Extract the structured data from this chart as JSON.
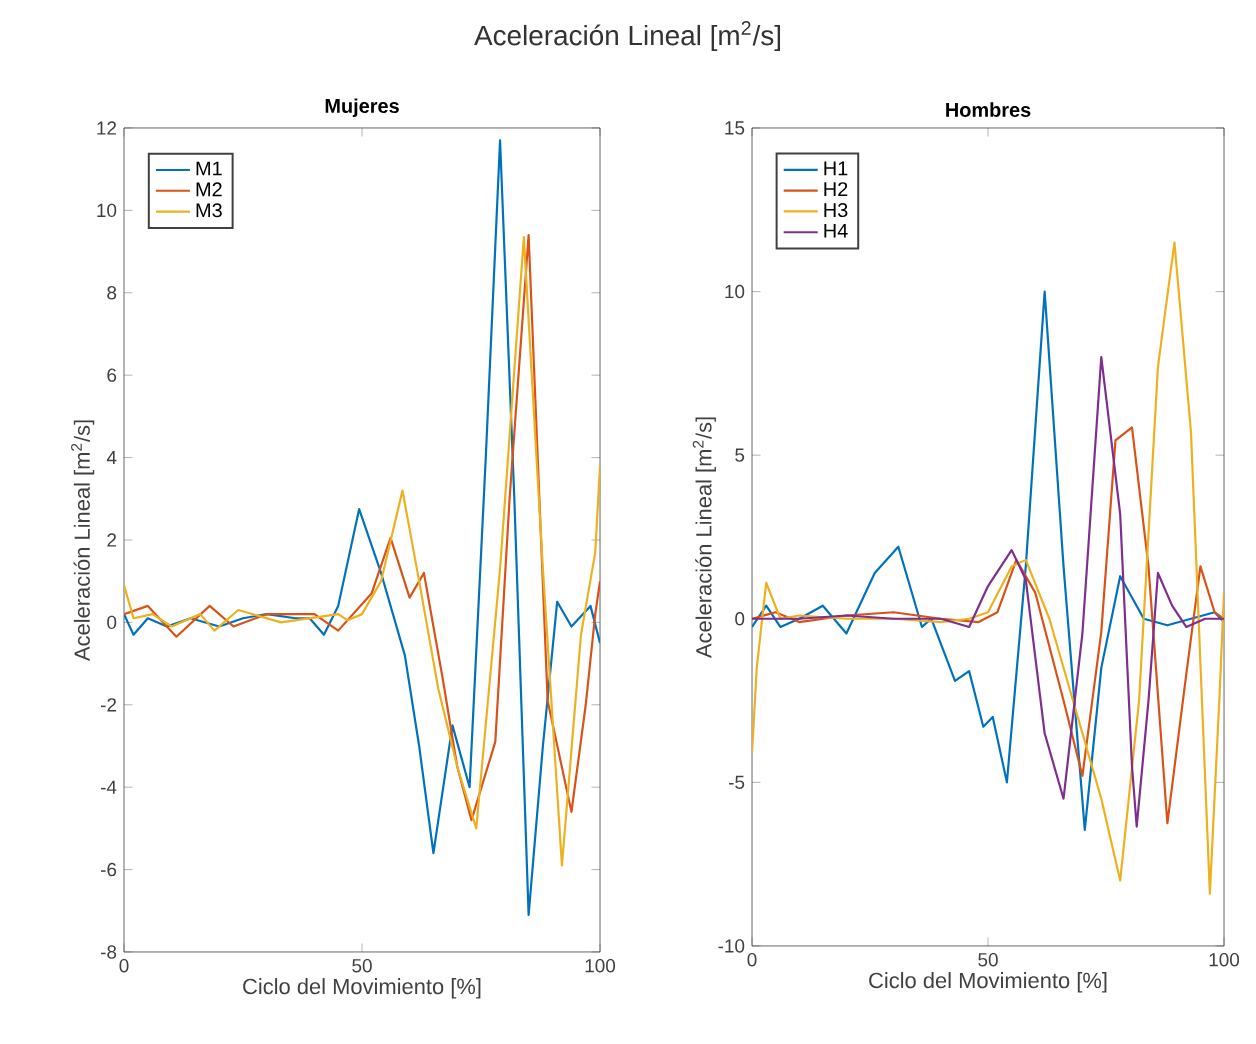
{
  "chart_data": [
    {
      "type": "line",
      "title": "Mujeres",
      "xlabel": "Ciclo del Movimiento [%]",
      "ylabel": "Aceleración Lineal [m$^{2}$/s]",
      "annotations": [
        "Aceleración Lineal [m$^{2}$/s]"
      ],
      "xlim": [
        0,
        100
      ],
      "xticks": [
        0,
        50,
        100
      ],
      "ylim": [
        -8,
        12
      ],
      "yticks": [
        -8,
        -6,
        -4,
        -2,
        0,
        2,
        4,
        6,
        8,
        10,
        12
      ],
      "grid": false,
      "legend": "top left",
      "line_style": "solid",
      "marker": "none",
      "series": [
        {
          "name": "M1",
          "color": "#0072bd",
          "x": [
            0,
            2,
            5,
            9,
            14,
            20,
            25,
            30,
            36,
            39,
            42,
            45,
            49.4,
            54,
            59,
            62,
            65,
            69,
            72.6,
            76,
            79,
            82,
            85,
            88,
            91,
            94,
            98,
            100
          ],
          "values": [
            0.2,
            -0.3,
            0.1,
            -0.1,
            0.1,
            -0.1,
            0.1,
            0.2,
            0.1,
            0.1,
            -0.3,
            0.4,
            2.75,
            1.2,
            -0.8,
            -3.0,
            -5.6,
            -2.5,
            -4.0,
            4.0,
            11.7,
            3.0,
            -7.1,
            -3.0,
            0.5,
            -0.1,
            0.4,
            -0.5
          ]
        },
        {
          "name": "M2",
          "color": "#d95319",
          "x": [
            0,
            5,
            11,
            18,
            23,
            30,
            40,
            45,
            52,
            56,
            60,
            63,
            67,
            70,
            73,
            78,
            81,
            85,
            89,
            94,
            97,
            99,
            100
          ],
          "values": [
            0.2,
            0.4,
            -0.35,
            0.4,
            -0.1,
            0.2,
            0.2,
            -0.2,
            0.7,
            2.05,
            0.6,
            1.2,
            -1.4,
            -3.5,
            -4.8,
            -2.9,
            3.0,
            9.4,
            -1.9,
            -4.6,
            -2.0,
            0.2,
            1.0
          ]
        },
        {
          "name": "M3",
          "color": "#edb120",
          "x": [
            0,
            2,
            6,
            10,
            16,
            19,
            24,
            33,
            45,
            47,
            50,
            54,
            58.5,
            62,
            66,
            70,
            74,
            79,
            84,
            88,
            92,
            96,
            99,
            100
          ],
          "values": [
            0.9,
            0.1,
            0.2,
            -0.1,
            0.2,
            -0.2,
            0.3,
            0,
            0.2,
            0.05,
            0.2,
            1.0,
            3.2,
            1.0,
            -1.6,
            -3.5,
            -5.0,
            1.3,
            9.35,
            1.3,
            -5.9,
            -0.3,
            1.7,
            3.8
          ]
        }
      ]
    },
    {
      "type": "line",
      "title": "Hombres",
      "xlabel": "Ciclo del Movimiento [%]",
      "ylabel": "Aceleración Lineal [m$^{2}$/s]",
      "xlim": [
        0,
        100
      ],
      "xticks": [
        0,
        50,
        100
      ],
      "ylim": [
        -10,
        15
      ],
      "yticks": [
        -10,
        -5,
        0,
        5,
        10,
        15
      ],
      "grid": false,
      "legend": "top left",
      "line_style": "solid",
      "marker": "none",
      "series": [
        {
          "name": "H1",
          "color": "#0072bd",
          "x": [
            0,
            3,
            6,
            10,
            15,
            20,
            26,
            31,
            36,
            38,
            43,
            46,
            49,
            51,
            54,
            58,
            62,
            66,
            70.5,
            74,
            78,
            83,
            88,
            93,
            98,
            100
          ],
          "values": [
            -0.25,
            0.4,
            -0.25,
            0,
            0.4,
            -0.45,
            1.4,
            2.2,
            -0.25,
            0,
            -1.9,
            -1.6,
            -3.3,
            -3.0,
            -5.0,
            1.6,
            10.0,
            1.6,
            -6.45,
            -1.5,
            1.3,
            0,
            -0.2,
            0,
            0.2,
            -0.1
          ]
        },
        {
          "name": "H2",
          "color": "#d95319",
          "x": [
            0,
            5,
            10,
            20,
            30,
            40,
            48,
            52,
            56,
            60,
            66,
            70,
            74,
            77,
            80.5,
            84,
            88,
            92,
            95,
            98,
            100
          ],
          "values": [
            0,
            0.2,
            -0.1,
            0.1,
            0.2,
            0,
            -0.1,
            0.2,
            1.8,
            0.8,
            -2.5,
            -4.8,
            -0.4,
            5.45,
            5.85,
            1.6,
            -6.25,
            -1.7,
            1.6,
            0.2,
            0
          ]
        },
        {
          "name": "H3",
          "color": "#edb120",
          "x": [
            0,
            1,
            3,
            6,
            10,
            20,
            30,
            40,
            46,
            50,
            55,
            58,
            63,
            68,
            74,
            78,
            82,
            86,
            89.5,
            93,
            97,
            99,
            100
          ],
          "values": [
            -4.1,
            -1.5,
            1.1,
            0,
            0.1,
            0,
            0,
            -0.1,
            0,
            0.2,
            1.6,
            1.8,
            0,
            -2.5,
            -5.5,
            -8.0,
            -2.5,
            7.7,
            11.5,
            5.7,
            -8.4,
            -2.5,
            0.8
          ]
        },
        {
          "name": "H4",
          "color": "#7e2f8e",
          "x": [
            0,
            10,
            20,
            30,
            40,
            46,
            50,
            55,
            58,
            62,
            66,
            70,
            74,
            78,
            80.5,
            81.5,
            84,
            86,
            89,
            92,
            96,
            100
          ],
          "values": [
            0,
            0,
            0.1,
            0,
            0,
            -0.25,
            1.0,
            2.1,
            1.2,
            -3.5,
            -5.5,
            -0.45,
            8.0,
            3.2,
            -4.5,
            -6.35,
            -2.5,
            1.4,
            0.4,
            -0.25,
            0,
            0
          ]
        }
      ]
    }
  ]
}
